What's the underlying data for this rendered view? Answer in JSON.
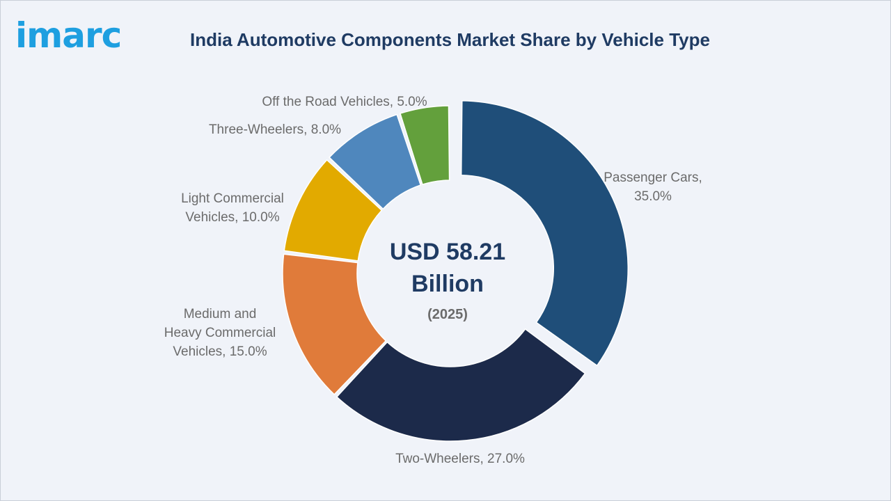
{
  "brand": {
    "logo_text": "imarc"
  },
  "chart_data": {
    "type": "pie",
    "title": "India Automotive Components Market Share by Vehicle Type",
    "center_value": "USD 58.21",
    "center_unit": "Billion",
    "center_year": "(2025)",
    "slices": [
      {
        "label": "Passenger Cars",
        "value": 35.0,
        "display": "35.0%",
        "color": "#1f4e79",
        "exploded": true
      },
      {
        "label": "Two-Wheelers",
        "value": 27.0,
        "display": "27.0%",
        "color": "#1c2a4a",
        "exploded": false
      },
      {
        "label": "Medium and Heavy Commercial Vehicles",
        "value": 15.0,
        "display": "15.0%",
        "color": "#e07b3a",
        "exploded": false
      },
      {
        "label": "Light Commercial Vehicles",
        "value": 10.0,
        "display": "10.0%",
        "color": "#e2aa00",
        "exploded": false
      },
      {
        "label": "Three-Wheelers",
        "value": 8.0,
        "display": "8.0%",
        "color": "#4f87bd",
        "exploded": false
      },
      {
        "label": "Off the Road Vehicles",
        "value": 5.0,
        "display": "5.0%",
        "color": "#63a03c",
        "exploded": false
      }
    ]
  }
}
